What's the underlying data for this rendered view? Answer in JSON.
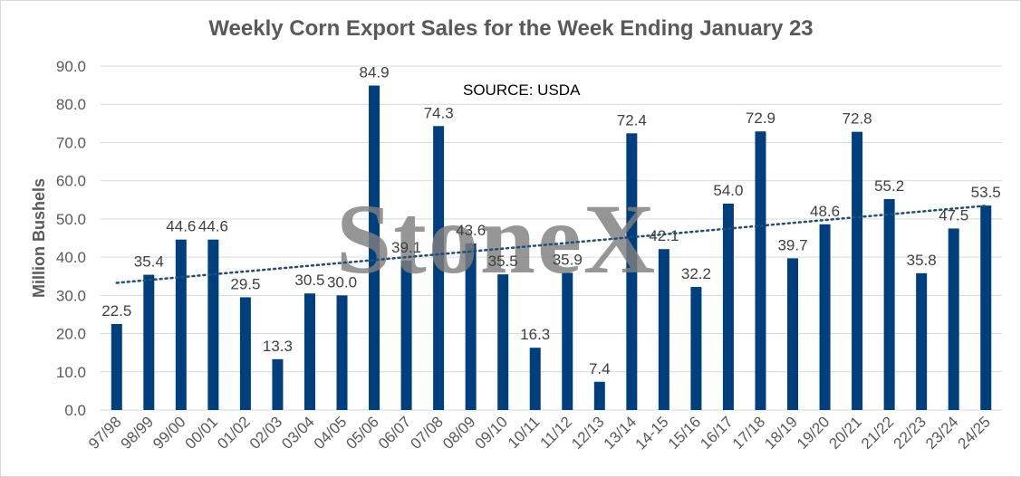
{
  "chart_data": {
    "type": "bar",
    "title": "Weekly Corn Export Sales for the Week Ending January 23",
    "ylabel": "Million Bushels",
    "xlabel": "",
    "annotation": "SOURCE: USDA",
    "watermark": "StoneX",
    "categories": [
      "97/98",
      "98/99",
      "99/00",
      "00/01",
      "01/02",
      "02/03",
      "03/04",
      "04/05",
      "05/06",
      "06/07",
      "07/08",
      "08/09",
      "09/10",
      "10/11",
      "11/12",
      "12/13",
      "13/14",
      "14-15",
      "15/16",
      "16/17",
      "17/18",
      "18/19",
      "19/20",
      "20/21",
      "21/22",
      "22/23",
      "23/24",
      "24/25"
    ],
    "values": [
      22.5,
      35.4,
      44.6,
      44.6,
      29.5,
      13.3,
      30.5,
      30.0,
      84.9,
      39.1,
      74.3,
      43.6,
      35.5,
      16.3,
      35.9,
      7.4,
      72.4,
      42.1,
      32.2,
      54.0,
      72.9,
      39.7,
      48.6,
      72.8,
      55.2,
      35.8,
      47.5,
      53.5
    ],
    "ylim": [
      0,
      90
    ],
    "yticks": [
      "0.0",
      "10.0",
      "20.0",
      "30.0",
      "40.0",
      "50.0",
      "60.0",
      "70.0",
      "80.0",
      "90.0"
    ],
    "grid": true,
    "trendline": "linear",
    "colors": {
      "bar": "#003f7d",
      "trend": "#1f4e79",
      "grid": "#d9d9d9"
    }
  }
}
